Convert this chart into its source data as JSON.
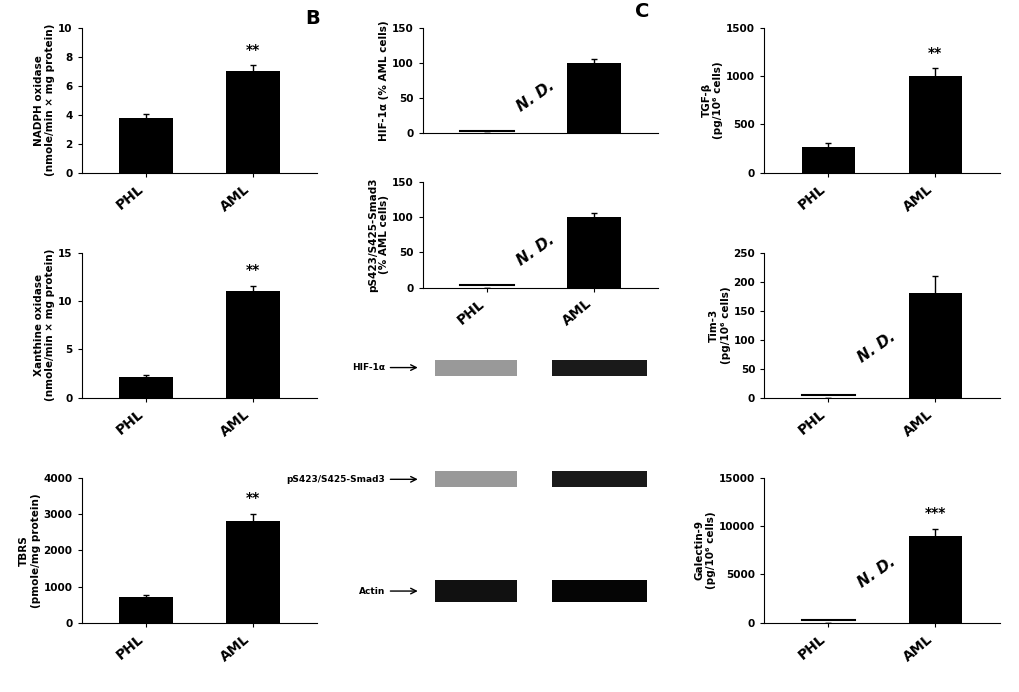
{
  "panel_A": {
    "nadph": {
      "phl_val": 3.8,
      "phl_err": 0.25,
      "aml_val": 7.0,
      "aml_err": 0.4,
      "ylim": [
        0,
        10
      ],
      "yticks": [
        0,
        2,
        4,
        6,
        8,
        10
      ],
      "ylabel": "NADPH oxidase\n(nmole/min × mg protein)",
      "significance": "**"
    },
    "xanthine": {
      "phl_val": 2.2,
      "phl_err": 0.2,
      "aml_val": 11.0,
      "aml_err": 0.6,
      "ylim": [
        0,
        15
      ],
      "yticks": [
        0,
        5,
        10,
        15
      ],
      "ylabel": "Xanthine oxidase\n(nmole/min × mg protein)",
      "significance": "**"
    },
    "tbrs": {
      "phl_val": 700,
      "phl_err": 60,
      "aml_val": 2800,
      "aml_err": 200,
      "ylim": [
        0,
        4000
      ],
      "yticks": [
        0,
        1000,
        2000,
        3000,
        4000
      ],
      "ylabel": "TBRS\n(pmole/mg protein)",
      "significance": "**"
    }
  },
  "panel_B": {
    "hif1a": {
      "phl_val": 0,
      "phl_err": 0,
      "aml_val": 100,
      "aml_err": 5,
      "ylim": [
        0,
        150
      ],
      "yticks": [
        0,
        50,
        100,
        150
      ],
      "ylabel": "HIF-1α (% AML cells)",
      "phl_nd": true,
      "significance": null
    },
    "smad3": {
      "phl_val": 0,
      "phl_err": 0,
      "aml_val": 100,
      "aml_err": 5,
      "ylim": [
        0,
        150
      ],
      "yticks": [
        0,
        50,
        100,
        150
      ],
      "ylabel": "pS423/S425-Smad3\n(% AML cells)",
      "phl_nd": true,
      "significance": null
    },
    "wb_labels": [
      "HIF-1α",
      "pS423/S425-Smad3",
      "Actin"
    ]
  },
  "panel_C": {
    "tgfb": {
      "phl_val": 270,
      "phl_err": 40,
      "aml_val": 1000,
      "aml_err": 80,
      "ylim": [
        0,
        1500
      ],
      "yticks": [
        0,
        500,
        1000,
        1500
      ],
      "ylabel": "TGF-β\n(pg/10⁶ cells)",
      "significance": "**"
    },
    "tim3": {
      "phl_val": 0,
      "phl_err": 0,
      "aml_val": 180,
      "aml_err": 30,
      "ylim": [
        0,
        250
      ],
      "yticks": [
        0,
        50,
        100,
        150,
        200,
        250
      ],
      "ylabel": "Tim-3\n(pg/10⁶ cells)",
      "phl_nd": true,
      "significance": null
    },
    "galectin9": {
      "phl_val": 0,
      "phl_err": 0,
      "aml_val": 9000,
      "aml_err": 700,
      "ylim": [
        0,
        15000
      ],
      "yticks": [
        0,
        5000,
        10000,
        15000
      ],
      "ylabel": "Galectin-9\n(pg/10⁶ cells)",
      "phl_nd": true,
      "significance": "***"
    }
  },
  "bar_color": "#000000",
  "bar_width": 0.5,
  "categories": [
    "PHL",
    "AML"
  ],
  "bg_color": "#ffffff",
  "label_fontsize": 7.5,
  "tick_fontsize": 7.5,
  "panel_label_fontsize": 14
}
